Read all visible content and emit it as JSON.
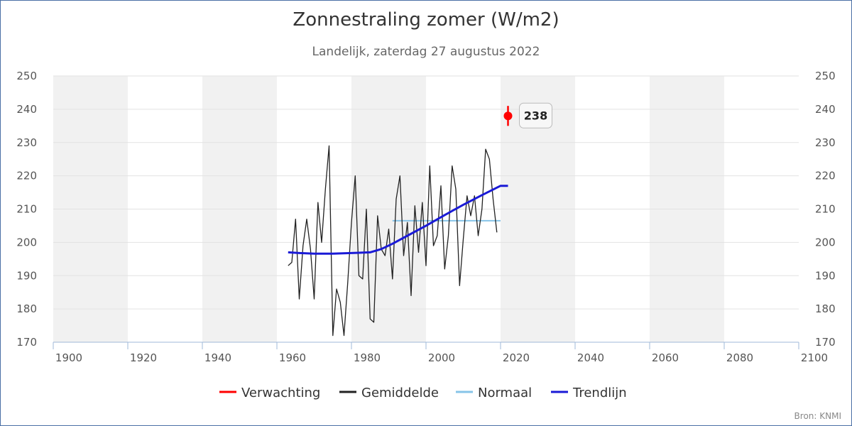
{
  "chart_data": {
    "type": "line",
    "title": "Zonnestraling zomer (W/m2)",
    "subtitle": "Landelijk, zaterdag 27 augustus 2022",
    "xlabel": "",
    "ylabel": "",
    "xlim": [
      1900,
      2100
    ],
    "ylim": [
      170,
      250
    ],
    "x_ticks": [
      1900,
      1920,
      1940,
      1960,
      1980,
      2000,
      2020,
      2040,
      2060,
      2080,
      2100
    ],
    "y_ticks": [
      170,
      180,
      190,
      200,
      210,
      220,
      230,
      240,
      250
    ],
    "grid": true,
    "legend_position": "bottom",
    "series": [
      {
        "name": "Verwachting",
        "color": "#ff0000",
        "type": "point",
        "points": [
          {
            "x": 2022,
            "y": 238,
            "low": 235,
            "high": 241
          }
        ]
      },
      {
        "name": "Gemiddelde",
        "color": "#222222",
        "type": "line",
        "x": [
          1963,
          1964,
          1965,
          1966,
          1967,
          1968,
          1969,
          1970,
          1971,
          1972,
          1973,
          1974,
          1975,
          1976,
          1977,
          1978,
          1979,
          1980,
          1981,
          1982,
          1983,
          1984,
          1985,
          1986,
          1987,
          1988,
          1989,
          1990,
          1991,
          1992,
          1993,
          1994,
          1995,
          1996,
          1997,
          1998,
          1999,
          2000,
          2001,
          2002,
          2003,
          2004,
          2005,
          2006,
          2007,
          2008,
          2009,
          2010,
          2011,
          2012,
          2013,
          2014,
          2015,
          2016,
          2017,
          2018,
          2019,
          2020,
          2021
        ],
        "values": [
          193,
          194,
          207,
          183,
          199,
          207,
          198,
          183,
          212,
          200,
          216,
          229,
          172,
          186,
          182,
          172,
          188,
          206,
          220,
          190,
          189,
          210,
          177,
          176,
          208,
          198,
          196,
          204,
          189,
          213,
          220,
          196,
          206,
          184,
          211,
          197,
          212,
          193,
          223,
          199,
          202,
          217,
          192,
          202,
          223,
          216,
          187,
          201,
          214,
          208,
          214,
          202,
          210,
          228,
          225,
          213,
          203,
          null,
          null
        ]
      },
      {
        "name": "Normaal",
        "color": "#87c4e8",
        "type": "line",
        "x": [
          1991,
          2020
        ],
        "values": [
          206.5,
          206.5
        ]
      },
      {
        "name": "Trendlijn",
        "color": "#1a1ad6",
        "type": "line",
        "x": [
          1963,
          1966,
          1970,
          1975,
          1980,
          1985,
          1988,
          1991,
          1995,
          2000,
          2005,
          2010,
          2015,
          2020,
          2022
        ],
        "values": [
          197,
          196.8,
          196.6,
          196.6,
          196.8,
          197.0,
          198.0,
          199.6,
          202.0,
          205.0,
          208.2,
          211.3,
          214.2,
          217.0,
          217.0
        ]
      }
    ],
    "annotations": [
      {
        "label": "238",
        "series": "Verwachting"
      }
    ],
    "credit": "Bron: KNMI"
  }
}
